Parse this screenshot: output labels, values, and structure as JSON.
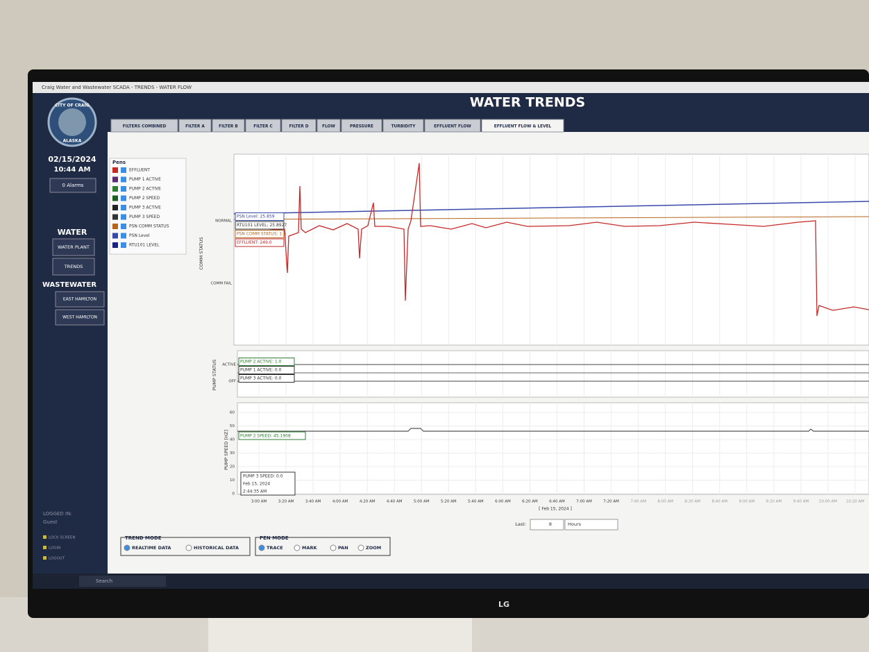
{
  "window_title": "Craig Water and Wastewater SCADA - TRENDS - WATER FLOW",
  "header": {
    "title": "WATER TRENDS",
    "logo_top": "CITY OF CRAIG",
    "logo_bottom": "ALASKA"
  },
  "sidebar": {
    "date": "02/15/2024",
    "time": "10:44 AM",
    "alarms": "0 Alarms",
    "water_heading": "WATER",
    "water_buttons": [
      "WATER PLANT",
      "TRENDS"
    ],
    "wastewater_heading": "WASTEWATER",
    "wastewater_buttons": [
      "EAST HAMILTON",
      "WEST HAMILTON"
    ],
    "logged_in": "LOGGED IN:",
    "user": "Guest",
    "links": [
      "LOCK SCREEN",
      "LOGIN",
      "LOGOUT"
    ]
  },
  "tabs": [
    "FILTERS COMBINED",
    "FILTER A",
    "FILTER B",
    "FILTER C",
    "FILTER D",
    "FLOW",
    "PRESSURE",
    "TURBIDITY",
    "EFFLUENT FLOW",
    "EFFLUENT FLOW & LEVEL"
  ],
  "pens": {
    "title": "Pens",
    "items": [
      {
        "name": "EFFLUENT",
        "color": "#c62828"
      },
      {
        "name": "PUMP 1 ACTIVE",
        "color": "#5b2c6f"
      },
      {
        "name": "PUMP 2 ACTIVE",
        "color": "#2e7d32"
      },
      {
        "name": "PUMP 2 SPEED",
        "color": "#1b5e20"
      },
      {
        "name": "PUMP 3 ACTIVE",
        "color": "#222222"
      },
      {
        "name": "PUMP 3 SPEED",
        "color": "#333333"
      },
      {
        "name": "PSN COMM STATUS",
        "color": "#b5651d"
      },
      {
        "name": "PSN Level",
        "color": "#3949ab"
      },
      {
        "name": "RTU101 LEVEL",
        "color": "#1a237e"
      }
    ]
  },
  "comm_panel": {
    "axis_label": "COMM STATUS",
    "levels": [
      "NORMAL",
      "COMM FAIL"
    ],
    "tags": [
      "PSN Level: 25.859",
      "RTU101 LEVEL: 25.8927",
      "PSN COMM STATUS: 1.0",
      "EFFLUENT: 249.0"
    ]
  },
  "pump_status_panel": {
    "axis_label": "PUMP STATUS",
    "levels": [
      "ACTIVE",
      "OFF"
    ],
    "tags": [
      "PUMP 2 ACTIVE: 1.0",
      "PUMP 1 ACTIVE: 0.0",
      "PUMP 3 ACTIVE: 0.0"
    ]
  },
  "pump_speed_panel": {
    "axis_label": "PUMP SPEED [HZ]",
    "ticks": [
      0,
      10,
      20,
      30,
      40,
      50,
      60
    ],
    "tags": [
      "PUMP 2 SPEED: 45.1908",
      "PUMP 3 SPEED: 0.0"
    ],
    "cursor": [
      "Feb 15, 2024",
      "2:44:35 AM"
    ]
  },
  "x_ticks": [
    "3:00 AM",
    "3:20 AM",
    "3:40 AM",
    "4:00 AM",
    "4:20 AM",
    "4:40 AM",
    "5:00 AM",
    "5:20 AM",
    "5:40 AM",
    "6:00 AM",
    "6:20 AM",
    "6:40 AM",
    "7:00 AM",
    "7:20 AM",
    "7:40 AM",
    "8:00 AM",
    "8:20 AM",
    "8:40 AM",
    "9:00 AM",
    "9:20 AM",
    "9:40 AM",
    "10:00 AM",
    "10:20 AM"
  ],
  "x_date": "[ Feb 15, 2024 ]",
  "range_control": {
    "label": "Last:",
    "amount": "8",
    "unit": "Hours"
  },
  "trend_mode": {
    "title": "TREND MODE",
    "options": [
      "REALTIME DATA",
      "HISTORICAL DATA"
    ]
  },
  "pen_mode": {
    "title": "PEN MODE",
    "options": [
      "TRACE",
      "MARK",
      "PAN",
      "ZOOM"
    ]
  },
  "taskbar": {
    "search": "Search"
  },
  "monitor": {
    "brand": "LG"
  }
}
